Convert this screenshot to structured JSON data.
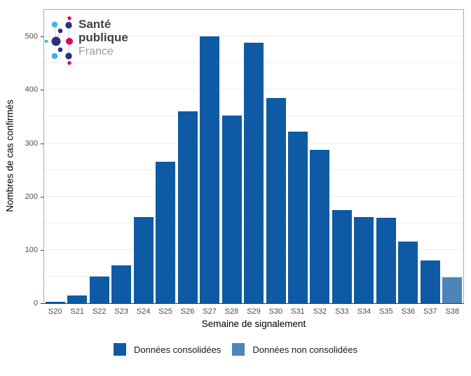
{
  "brand": {
    "line1": "Santé",
    "line2": "publique",
    "line3": "France",
    "colors": {
      "navy": "#27337f",
      "cyan": "#35b9e9",
      "pink": "#e0055f",
      "text_dark": "#423f47",
      "text_light": "#9c9ca2"
    }
  },
  "chart_data": {
    "type": "bar",
    "title": "",
    "xlabel": "Semaine de signalement",
    "ylabel": "Nombres de cas confirmés",
    "categories": [
      "S20",
      "S21",
      "S22",
      "S23",
      "S24",
      "S25",
      "S26",
      "S27",
      "S28",
      "S29",
      "S30",
      "S31",
      "S32",
      "S33",
      "S34",
      "S35",
      "S36",
      "S37",
      "S38"
    ],
    "values": [
      3,
      15,
      50,
      71,
      161,
      265,
      360,
      500,
      352,
      488,
      385,
      322,
      287,
      175,
      162,
      160,
      115,
      80,
      48
    ],
    "bar_series": [
      0,
      0,
      0,
      0,
      0,
      0,
      0,
      0,
      0,
      0,
      0,
      0,
      0,
      0,
      0,
      0,
      0,
      0,
      1
    ],
    "legend": [
      {
        "label": "Données consolidées",
        "color": "#0e5aa5"
      },
      {
        "label": "Données non consolidées",
        "color": "#4d84ba"
      }
    ],
    "yticks": [
      0,
      100,
      200,
      300,
      400,
      500
    ],
    "grid_step": 50,
    "ylim": [
      0,
      550
    ],
    "grid": "horizontal-only",
    "legend_position": "bottom"
  }
}
